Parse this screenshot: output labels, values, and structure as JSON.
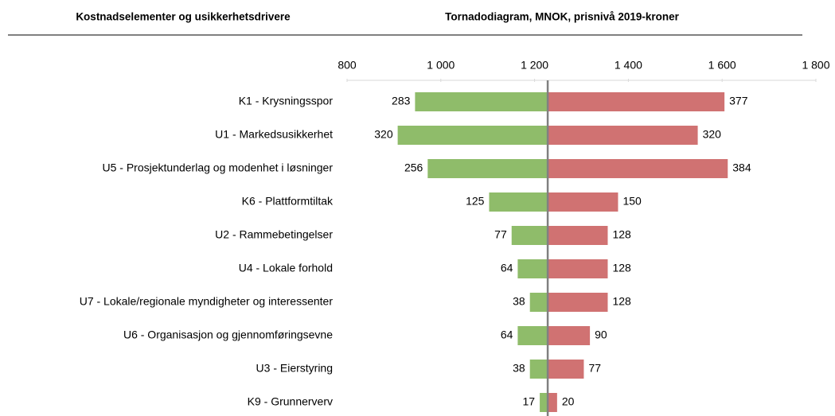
{
  "chart_data": {
    "type": "tornado",
    "header_left": "Kostnadselementer og usikkerhetsdrivere",
    "title": "Tornadodiagram, MNOK, prisnivå 2019-kroner",
    "categories": [
      "K1 - Krysningsspor",
      "U1 - Markedsusikkerhet",
      "U5 - Prosjektunderlag og modenhet i løsninger",
      "K6 - Plattformtiltak",
      "U2 - Rammebetingelser",
      "U4 - Lokale forhold",
      "U7 - Lokale/regionale myndigheter og interessenter",
      "U6 - Organisasjon og gjennomføringsevne",
      "U3 - Eierstyring",
      "K9 - Grunnerverv"
    ],
    "base": 1228,
    "series": [
      {
        "color": "#8fbc6a",
        "direction": "down",
        "values": [
          283,
          320,
          256,
          125,
          77,
          64,
          38,
          64,
          38,
          17
        ]
      },
      {
        "color": "#d07272",
        "direction": "up",
        "values": [
          377,
          320,
          384,
          150,
          128,
          128,
          128,
          90,
          77,
          20
        ]
      }
    ],
    "xlim": [
      800,
      1800
    ],
    "xticks": [
      800,
      {
        "value": 1000,
        "label": "1 000"
      },
      {
        "value": 1200,
        "label": "1 200"
      },
      {
        "value": 1400,
        "label": "1 400"
      },
      {
        "value": 1600,
        "label": "1 600"
      },
      {
        "value": 1800,
        "label": "1 800"
      }
    ],
    "base_color": "#808080"
  }
}
